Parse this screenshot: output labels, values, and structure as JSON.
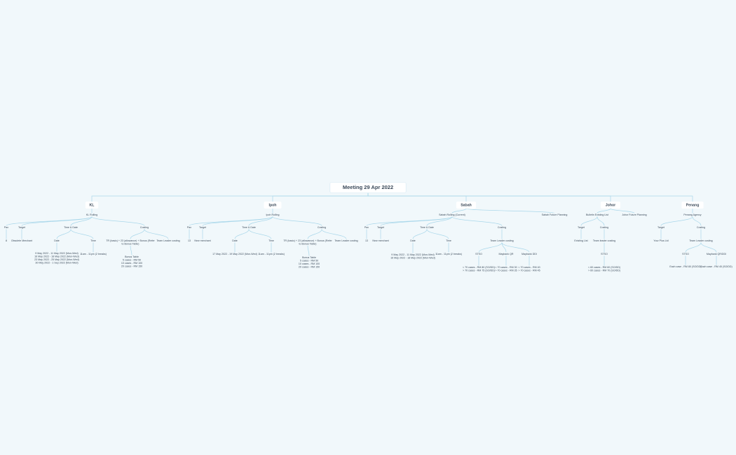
{
  "root": {
    "lines": [
      "Meeting 29 Apr 2022"
    ],
    "children": [
      {
        "lines": [
          "KL"
        ],
        "children": [
          {
            "lines": [
              "KL Rolling"
            ],
            "children": [
              {
                "lines": [
                  "Pax"
                ],
                "children": [
                  {
                    "lines": [
                      "8"
                    ]
                  }
                ]
              },
              {
                "lines": [
                  "Target"
                ],
                "children": [
                  {
                    "lines": [
                      "Obsolete Merchant"
                    ]
                  }
                ]
              },
              {
                "lines": [
                  "Time & Date"
                ],
                "children": [
                  {
                    "lines": [
                      "Date"
                    ],
                    "children": [
                      {
                        "lines": [
                          "9 May 2022 - 11 May 2022 (Mon-Wed)",
                          "16 May 2022 - 18 May 2022 (Mon-Wed)",
                          "23 May 2022 - 25 May 2022 (Mon-Wed)",
                          "30 May 2022 - 1 Sep 2022 (Mon-Wed)"
                        ]
                      }
                    ]
                  },
                  {
                    "lines": [
                      "Time"
                    ],
                    "children": [
                      {
                        "lines": [
                          "11am - 11pm (2 breaks)"
                        ]
                      }
                    ]
                  }
                ]
              },
              {
                "lines": [
                  "Costing"
                ],
                "children": [
                  {
                    "lines": [
                      "TR (basic) + 23 (allowance) + Bonus (Refer",
                      "to Bonus Table)"
                    ],
                    "children": [
                      {
                        "lines": [
                          "Bonus Table",
                          "5 cases - RM 50",
                          "10 cases - RM 100",
                          "20 cases - RM 150"
                        ]
                      }
                    ]
                  },
                  {
                    "lines": [
                      "Team Leader costing"
                    ]
                  }
                ]
              }
            ]
          }
        ]
      },
      {
        "lines": [
          "Ipoh"
        ],
        "children": [
          {
            "lines": [
              "Ipoh Rolling"
            ],
            "children": [
              {
                "lines": [
                  "Pax"
                ],
                "children": [
                  {
                    "lines": [
                      "13"
                    ]
                  }
                ]
              },
              {
                "lines": [
                  "Target"
                ],
                "children": [
                  {
                    "lines": [
                      "New merchant"
                    ]
                  }
                ]
              },
              {
                "lines": [
                  "Time & Date"
                ],
                "children": [
                  {
                    "lines": [
                      "Date"
                    ],
                    "children": [
                      {
                        "lines": [
                          "17 May 2022 - 19 May 2022 (Mon-Wed)"
                        ]
                      }
                    ]
                  },
                  {
                    "lines": [
                      "Time"
                    ],
                    "children": [
                      {
                        "lines": [
                          "11am - 11pm (2 breaks)"
                        ]
                      }
                    ]
                  }
                ]
              },
              {
                "lines": [
                  "Costing"
                ],
                "children": [
                  {
                    "lines": [
                      "TR (basic) + 23 (allowance) + Bonus (Refer",
                      "to Bonus Table)"
                    ],
                    "children": [
                      {
                        "lines": [
                          "Bonus Table",
                          "5 cases - RM 50",
                          "10 cases - RM 100",
                          "20 cases - RM 150"
                        ]
                      }
                    ]
                  },
                  {
                    "lines": [
                      "Team Leader costing"
                    ]
                  }
                ]
              }
            ]
          }
        ]
      },
      {
        "lines": [
          "Sabah"
        ],
        "children": [
          {
            "lines": [
              "Sabah Rolling (Current)"
            ],
            "children": [
              {
                "lines": [
                  "Pax"
                ],
                "children": [
                  {
                    "lines": [
                      "13"
                    ]
                  }
                ]
              },
              {
                "lines": [
                  "Target"
                ],
                "children": [
                  {
                    "lines": [
                      "New merchant"
                    ]
                  }
                ]
              },
              {
                "lines": [
                  "Time & Date"
                ],
                "children": [
                  {
                    "lines": [
                      "Date"
                    ],
                    "children": [
                      {
                        "lines": [
                          "9 May 2022 - 11 May 2022 (Mon-Wed)",
                          "16 May 2022 - 18 May 2022 (Mon-Wed)"
                        ]
                      }
                    ]
                  },
                  {
                    "lines": [
                      "Time"
                    ],
                    "children": [
                      {
                        "lines": [
                          "11am - 11pm (2 breaks)"
                        ]
                      }
                    ]
                  }
                ]
              },
              {
                "lines": [
                  "Costing"
                ],
                "children": [
                  {
                    "lines": [
                      "Team Leader costing"
                    ],
                    "children": [
                      {
                        "lines": [
                          "STSO"
                        ],
                        "children": [
                          {
                            "lines": [
                              "< 70 cases - RM 80 (SO/DD)",
                              "> 70 cases - RM 75 (SO/DD)"
                            ]
                          }
                        ]
                      },
                      {
                        "lines": [
                          "Maybank QR"
                        ],
                        "children": [
                          {
                            "lines": [
                              "< 70 cases - RM 30",
                              "> 70 cases - RM 35"
                            ]
                          }
                        ]
                      },
                      {
                        "lines": [
                          "Maybank DDI"
                        ],
                        "children": [
                          {
                            "lines": [
                              "< 70 cases - RM 40",
                              "> 70 cases - RM 45"
                            ]
                          }
                        ]
                      }
                    ]
                  }
                ]
              }
            ]
          },
          {
            "lines": [
              "Sabah Future Planning"
            ]
          }
        ]
      },
      {
        "lines": [
          "Johor"
        ],
        "children": [
          {
            "lines": [
              "Bulletin Existing List"
            ],
            "children": [
              {
                "lines": [
                  "Target"
                ],
                "children": [
                  {
                    "lines": [
                      "Existing List"
                    ]
                  }
                ]
              },
              {
                "lines": [
                  "Costing"
                ],
                "children": [
                  {
                    "lines": [
                      "Team leader costing"
                    ],
                    "children": [
                      {
                        "lines": [
                          "STSO"
                        ],
                        "children": [
                          {
                            "lines": [
                              "< 60 cases - RM 60 (SO/DD)",
                              "> 60 cases - RM 70 (SO/DD)"
                            ]
                          }
                        ]
                      }
                    ]
                  }
                ]
              }
            ]
          },
          {
            "lines": [
              "Johor Future Planning"
            ]
          }
        ]
      },
      {
        "lines": [
          "Penang"
        ],
        "children": [
          {
            "lines": [
              "Penang Agency"
            ],
            "children": [
              {
                "lines": [
                  "Target"
                ],
                "children": [
                  {
                    "lines": [
                      "Your Plus Ltd"
                    ]
                  }
                ]
              },
              {
                "lines": [
                  "Costing"
                ],
                "children": [
                  {
                    "lines": [
                      "Team Leader costing"
                    ],
                    "children": [
                      {
                        "lines": [
                          "STSO"
                        ],
                        "children": [
                          {
                            "lines": [
                              "Each case - RM 80 (SO/DD)"
                            ]
                          }
                        ]
                      },
                      {
                        "lines": [
                          "Maybank QR/DDI"
                        ],
                        "children": [
                          {
                            "lines": [
                              "Each case - RM 45 (SO/DD)"
                            ]
                          }
                        ]
                      }
                    ]
                  }
                ]
              }
            ]
          }
        ]
      }
    ]
  }
}
